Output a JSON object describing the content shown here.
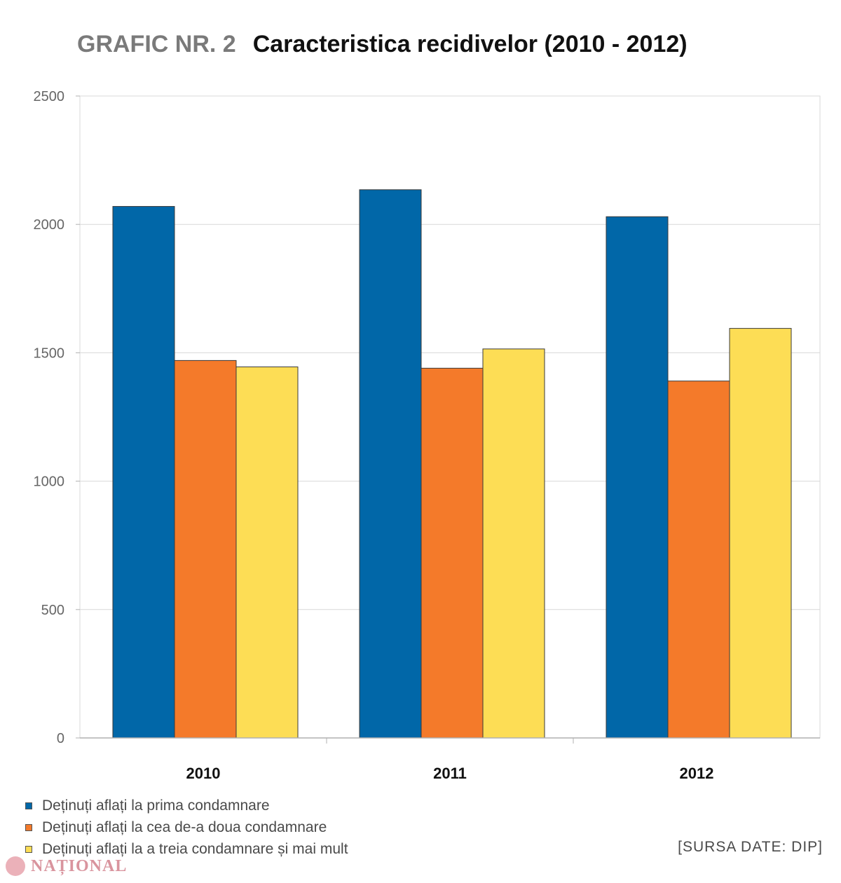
{
  "header": {
    "prefix": "GRAFIC NR. 2",
    "title": "Caracteristica recidivelor (2010 - 2012)"
  },
  "chart_data": {
    "type": "bar",
    "title": "Caracteristica recidivelor (2010 - 2012)",
    "xlabel": "",
    "ylabel": "",
    "categories": [
      "2010",
      "2011",
      "2012"
    ],
    "ylim": [
      0,
      2500
    ],
    "yticks": [
      0,
      500,
      1000,
      1500,
      2000,
      2500
    ],
    "grid": true,
    "legend_position": "bottom-left",
    "series": [
      {
        "name": "Deținuți aflați la prima condamnare",
        "color": "#0167a8",
        "values": [
          2070,
          2135,
          2030
        ]
      },
      {
        "name": "Deținuți aflați la cea de-a doua condamnare",
        "color": "#f47a2a",
        "values": [
          1470,
          1440,
          1390
        ]
      },
      {
        "name": "Deținuți aflați la a treia condamnare și mai mult",
        "color": "#fddd55",
        "values": [
          1445,
          1515,
          1595
        ]
      }
    ]
  },
  "source": "[SURSA DATE: DIP]",
  "logo": {
    "text": "NAȚIONAL"
  }
}
